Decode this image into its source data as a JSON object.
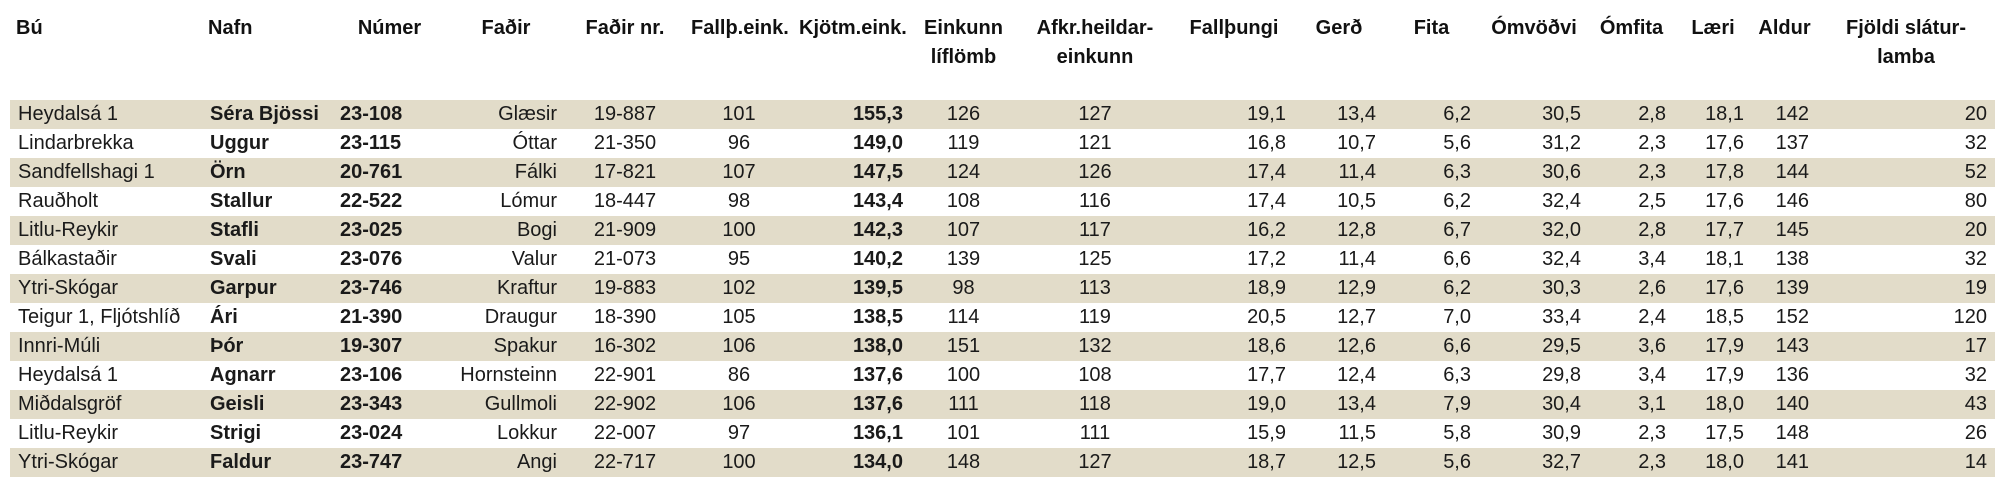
{
  "headers": {
    "bu": "Bú",
    "nafn": "Nafn",
    "numer": "Númer",
    "fadir": "Faðir",
    "fadir_nr": "Faðir nr.",
    "fallth_eink": "Fallþ.eink.",
    "kjotm_eink": "Kjötm.eink.",
    "einkunn_liflomb": "Einkunn líflömb",
    "afkr_heildareinkunn": "Afkr.heildar-einkunn",
    "fallthungi": "Fallþungi",
    "gerd": "Gerð",
    "fita": "Fita",
    "omvodvi": "Ómvöðvi",
    "omfita": "Ómfita",
    "laeri": "Læri",
    "aldur": "Aldur",
    "fjoldi_slaturlamba": "Fjöldi slátur-lamba"
  },
  "rows": [
    {
      "bu": "Heydalsá 1",
      "nafn": "Séra Bjössi",
      "numer": "23-108",
      "fadir": "Glæsir",
      "fadir_nr": "19-887",
      "fallth": "101",
      "kjotm": "155,3",
      "liflomb": "126",
      "afkr": "127",
      "fallthungi": "19,1",
      "gerd": "13,4",
      "fita": "6,2",
      "omvodvi": "30,5",
      "omfita": "2,8",
      "laeri": "18,1",
      "aldur": "142",
      "fjoldi": "20"
    },
    {
      "bu": "Lindarbrekka",
      "nafn": "Uggur",
      "numer": "23-115",
      "fadir": "Óttar",
      "fadir_nr": "21-350",
      "fallth": "96",
      "kjotm": "149,0",
      "liflomb": "119",
      "afkr": "121",
      "fallthungi": "16,8",
      "gerd": "10,7",
      "fita": "5,6",
      "omvodvi": "31,2",
      "omfita": "2,3",
      "laeri": "17,6",
      "aldur": "137",
      "fjoldi": "32"
    },
    {
      "bu": "Sandfellshagi 1",
      "nafn": "Örn",
      "numer": "20-761",
      "fadir": "Fálki",
      "fadir_nr": "17-821",
      "fallth": "107",
      "kjotm": "147,5",
      "liflomb": "124",
      "afkr": "126",
      "fallthungi": "17,4",
      "gerd": "11,4",
      "fita": "6,3",
      "omvodvi": "30,6",
      "omfita": "2,3",
      "laeri": "17,8",
      "aldur": "144",
      "fjoldi": "52"
    },
    {
      "bu": "Rauðholt",
      "nafn": "Stallur",
      "numer": "22-522",
      "fadir": "Lómur",
      "fadir_nr": "18-447",
      "fallth": "98",
      "kjotm": "143,4",
      "liflomb": "108",
      "afkr": "116",
      "fallthungi": "17,4",
      "gerd": "10,5",
      "fita": "6,2",
      "omvodvi": "32,4",
      "omfita": "2,5",
      "laeri": "17,6",
      "aldur": "146",
      "fjoldi": "80"
    },
    {
      "bu": "Litlu-Reykir",
      "nafn": "Stafli",
      "numer": "23-025",
      "fadir": "Bogi",
      "fadir_nr": "21-909",
      "fallth": "100",
      "kjotm": "142,3",
      "liflomb": "107",
      "afkr": "117",
      "fallthungi": "16,2",
      "gerd": "12,8",
      "fita": "6,7",
      "omvodvi": "32,0",
      "omfita": "2,8",
      "laeri": "17,7",
      "aldur": "145",
      "fjoldi": "20"
    },
    {
      "bu": "Bálkastaðir",
      "nafn": "Svali",
      "numer": "23-076",
      "fadir": "Valur",
      "fadir_nr": "21-073",
      "fallth": "95",
      "kjotm": "140,2",
      "liflomb": "139",
      "afkr": "125",
      "fallthungi": "17,2",
      "gerd": "11,4",
      "fita": "6,6",
      "omvodvi": "32,4",
      "omfita": "3,4",
      "laeri": "18,1",
      "aldur": "138",
      "fjoldi": "32"
    },
    {
      "bu": "Ytri-Skógar",
      "nafn": "Garpur",
      "numer": "23-746",
      "fadir": "Kraftur",
      "fadir_nr": "19-883",
      "fallth": "102",
      "kjotm": "139,5",
      "liflomb": "98",
      "afkr": "113",
      "fallthungi": "18,9",
      "gerd": "12,9",
      "fita": "6,2",
      "omvodvi": "30,3",
      "omfita": "2,6",
      "laeri": "17,6",
      "aldur": "139",
      "fjoldi": "19"
    },
    {
      "bu": "Teigur 1, Fljótshlíð",
      "nafn": "Ári",
      "numer": "21-390",
      "fadir": "Draugur",
      "fadir_nr": "18-390",
      "fallth": "105",
      "kjotm": "138,5",
      "liflomb": "114",
      "afkr": "119",
      "fallthungi": "20,5",
      "gerd": "12,7",
      "fita": "7,0",
      "omvodvi": "33,4",
      "omfita": "2,4",
      "laeri": "18,5",
      "aldur": "152",
      "fjoldi": "120"
    },
    {
      "bu": "Innri-Múli",
      "nafn": "Þór",
      "numer": "19-307",
      "fadir": "Spakur",
      "fadir_nr": "16-302",
      "fallth": "106",
      "kjotm": "138,0",
      "liflomb": "151",
      "afkr": "132",
      "fallthungi": "18,6",
      "gerd": "12,6",
      "fita": "6,6",
      "omvodvi": "29,5",
      "omfita": "3,6",
      "laeri": "17,9",
      "aldur": "143",
      "fjoldi": "17"
    },
    {
      "bu": "Heydalsá 1",
      "nafn": "Agnarr",
      "numer": "23-106",
      "fadir": "Hornsteinn",
      "fadir_nr": "22-901",
      "fallth": "86",
      "kjotm": "137,6",
      "liflomb": "100",
      "afkr": "108",
      "fallthungi": "17,7",
      "gerd": "12,4",
      "fita": "6,3",
      "omvodvi": "29,8",
      "omfita": "3,4",
      "laeri": "17,9",
      "aldur": "136",
      "fjoldi": "32"
    },
    {
      "bu": "Miðdalsgröf",
      "nafn": "Geisli",
      "numer": "23-343",
      "fadir": "Gullmoli",
      "fadir_nr": "22-902",
      "fallth": "106",
      "kjotm": "137,6",
      "liflomb": "111",
      "afkr": "118",
      "fallthungi": "19,0",
      "gerd": "13,4",
      "fita": "7,9",
      "omvodvi": "30,4",
      "omfita": "3,1",
      "laeri": "18,0",
      "aldur": "140",
      "fjoldi": "43"
    },
    {
      "bu": "Litlu-Reykir",
      "nafn": "Strigi",
      "numer": "23-024",
      "fadir": "Lokkur",
      "fadir_nr": "22-007",
      "fallth": "97",
      "kjotm": "136,1",
      "liflomb": "101",
      "afkr": "111",
      "fallthungi": "15,9",
      "gerd": "11,5",
      "fita": "5,8",
      "omvodvi": "30,9",
      "omfita": "2,3",
      "laeri": "17,5",
      "aldur": "148",
      "fjoldi": "26"
    },
    {
      "bu": "Ytri-Skógar",
      "nafn": "Faldur",
      "numer": "23-747",
      "fadir": "Angi",
      "fadir_nr": "22-717",
      "fallth": "100",
      "kjotm": "134,0",
      "liflomb": "148",
      "afkr": "127",
      "fallthungi": "18,7",
      "gerd": "12,5",
      "fita": "5,6",
      "omvodvi": "32,7",
      "omfita": "2,3",
      "laeri": "18,0",
      "aldur": "141",
      "fjoldi": "14"
    }
  ],
  "colors": {
    "stripe": "#e2dcc9",
    "background": "#ffffff",
    "text": "#1a1a1a"
  }
}
